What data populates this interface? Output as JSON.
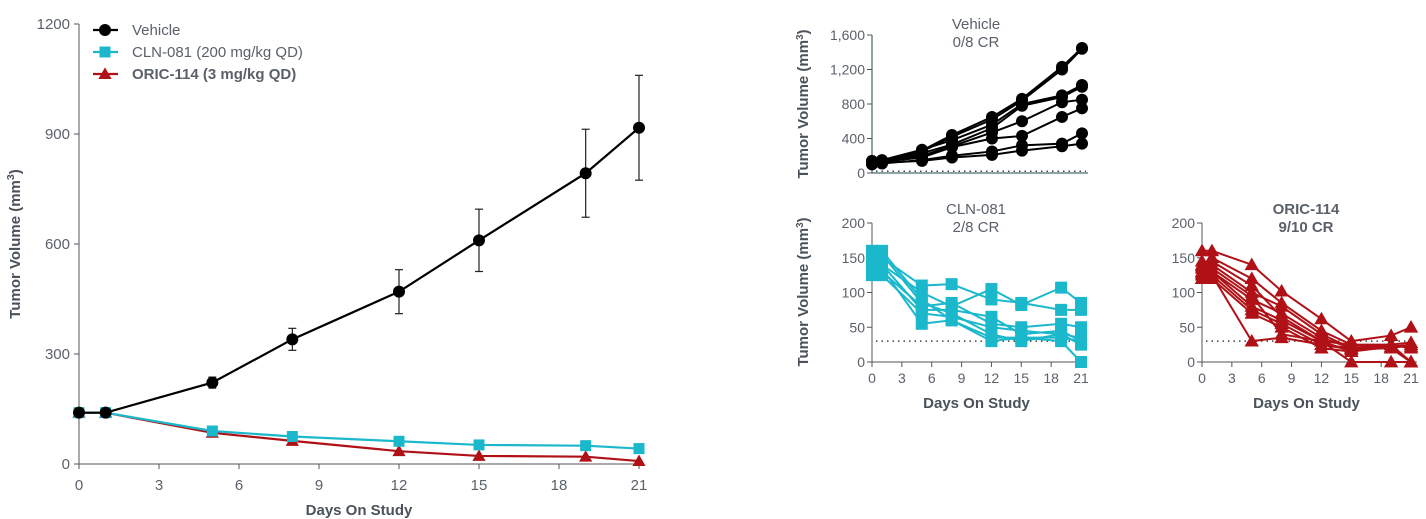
{
  "chart_data": [
    {
      "type": "line",
      "xlabel": "Days On Study",
      "ylabel": "Tumor Volume (mm³)",
      "ylabel_base": "Tumor Volume (mm",
      "ylabel_sup": "3",
      "ylabel_end": ")",
      "xlim": [
        0,
        21
      ],
      "ylim": [
        0,
        1200
      ],
      "xticks": [
        0,
        3,
        6,
        9,
        12,
        15,
        18,
        21
      ],
      "yticks": [
        0,
        300,
        600,
        900,
        1200
      ],
      "legend": "top-left",
      "x": [
        0,
        1,
        5,
        8,
        12,
        15,
        19,
        21
      ],
      "series": [
        {
          "name": "Vehicle",
          "color": "#000000",
          "marker": "circle",
          "bold": false,
          "values": [
            140,
            140,
            222,
            340,
            470,
            610,
            793,
            917
          ],
          "error": [
            0,
            0,
            15,
            30,
            60,
            85,
            120,
            143
          ]
        },
        {
          "name": "CLN-081 (200 mg/kg QD)",
          "color": "#1bb8cc",
          "marker": "square",
          "bold": false,
          "values": [
            140,
            140,
            90,
            75,
            62,
            52,
            50,
            42
          ]
        },
        {
          "name": "ORIC-114 (3 mg/kg QD)",
          "color": "#b01116",
          "marker": "triangle",
          "bold": true,
          "values": [
            140,
            140,
            85,
            63,
            35,
            22,
            20,
            8
          ]
        }
      ]
    },
    {
      "type": "line",
      "title": "Vehicle",
      "subtitle": "0/8 CR",
      "title_color": "#5a616b",
      "ylabel_base": "Tumor Volume (mm",
      "ylabel_sup": "3",
      "ylabel_end": ")",
      "xlim": [
        0,
        21
      ],
      "ylim": [
        0,
        1600
      ],
      "yticks": [
        0,
        400,
        800,
        1200,
        1600
      ],
      "ytick_labels": [
        "0",
        "400",
        "800",
        "1,200",
        "1,600"
      ],
      "reference_line": 20,
      "x": [
        0,
        1,
        5,
        8,
        12,
        15,
        19,
        21
      ],
      "color": "#000000",
      "marker": "circle",
      "individuals": [
        [
          130,
          140,
          260,
          440,
          650,
          860,
          1230,
          1450
        ],
        [
          120,
          130,
          250,
          420,
          620,
          840,
          1200,
          1440
        ],
        [
          140,
          150,
          270,
          380,
          560,
          800,
          900,
          1020
        ],
        [
          110,
          120,
          230,
          330,
          520,
          780,
          880,
          1000
        ],
        [
          130,
          140,
          200,
          310,
          470,
          600,
          820,
          850
        ],
        [
          120,
          130,
          180,
          300,
          400,
          430,
          650,
          750
        ],
        [
          100,
          110,
          150,
          200,
          250,
          320,
          340,
          460
        ],
        [
          110,
          120,
          140,
          180,
          210,
          260,
          310,
          340
        ]
      ]
    },
    {
      "type": "line",
      "title": "CLN-081",
      "subtitle": "2/8 CR",
      "title_color": "#5a616b",
      "xlabel": "Days On Study",
      "ylabel_base": "Tumor Volume (mm",
      "ylabel_sup": "3",
      "ylabel_end": ")",
      "xlim": [
        0,
        21
      ],
      "ylim": [
        0,
        200
      ],
      "xticks": [
        0,
        3,
        6,
        9,
        12,
        15,
        18,
        21
      ],
      "yticks": [
        0,
        50,
        100,
        150,
        200
      ],
      "reference_line": 30,
      "x": [
        0,
        1,
        5,
        8,
        12,
        15,
        19,
        21
      ],
      "color": "#1bb8cc",
      "marker": "square",
      "individuals": [
        [
          160,
          150,
          110,
          112,
          90,
          85,
          75,
          75
        ],
        [
          150,
          140,
          100,
          80,
          105,
          82,
          107,
          85
        ],
        [
          140,
          130,
          80,
          85,
          55,
          50,
          55,
          50
        ],
        [
          130,
          140,
          75,
          75,
          65,
          40,
          45,
          30
        ],
        [
          125,
          135,
          55,
          60,
          30,
          35,
          30,
          0
        ],
        [
          145,
          155,
          85,
          70,
          40,
          30,
          40,
          25
        ],
        [
          135,
          125,
          70,
          65,
          50,
          45,
          40,
          35
        ],
        [
          155,
          160,
          90,
          60,
          35,
          35,
          35,
          30
        ]
      ]
    },
    {
      "type": "line",
      "title": "ORIC-114",
      "subtitle": "9/10 CR",
      "title_color": "#b01116",
      "xlabel": "Days On Study",
      "xlim": [
        0,
        21
      ],
      "ylim": [
        0,
        200
      ],
      "xticks": [
        0,
        3,
        6,
        9,
        12,
        15,
        18,
        21
      ],
      "yticks": [
        0,
        50,
        100,
        150,
        200
      ],
      "reference_line": 30,
      "x": [
        0,
        1,
        5,
        8,
        12,
        15,
        19,
        21
      ],
      "color": "#b01116",
      "marker": "triangle",
      "individuals": [
        [
          160,
          160,
          140,
          102,
          62,
          30,
          38,
          50
        ],
        [
          140,
          150,
          120,
          85,
          45,
          25,
          25,
          28
        ],
        [
          130,
          140,
          100,
          80,
          40,
          20,
          20,
          25
        ],
        [
          125,
          130,
          90,
          70,
          35,
          20,
          22,
          25
        ],
        [
          120,
          130,
          80,
          60,
          30,
          0,
          0,
          0
        ],
        [
          135,
          125,
          75,
          55,
          25,
          18,
          20,
          0
        ],
        [
          128,
          120,
          70,
          50,
          20,
          15,
          25,
          20
        ],
        [
          145,
          135,
          95,
          40,
          30,
          25,
          20,
          0
        ],
        [
          120,
          125,
          30,
          35,
          25,
          20,
          25,
          0
        ],
        [
          138,
          145,
          110,
          65,
          30,
          15,
          22,
          22
        ]
      ]
    }
  ]
}
